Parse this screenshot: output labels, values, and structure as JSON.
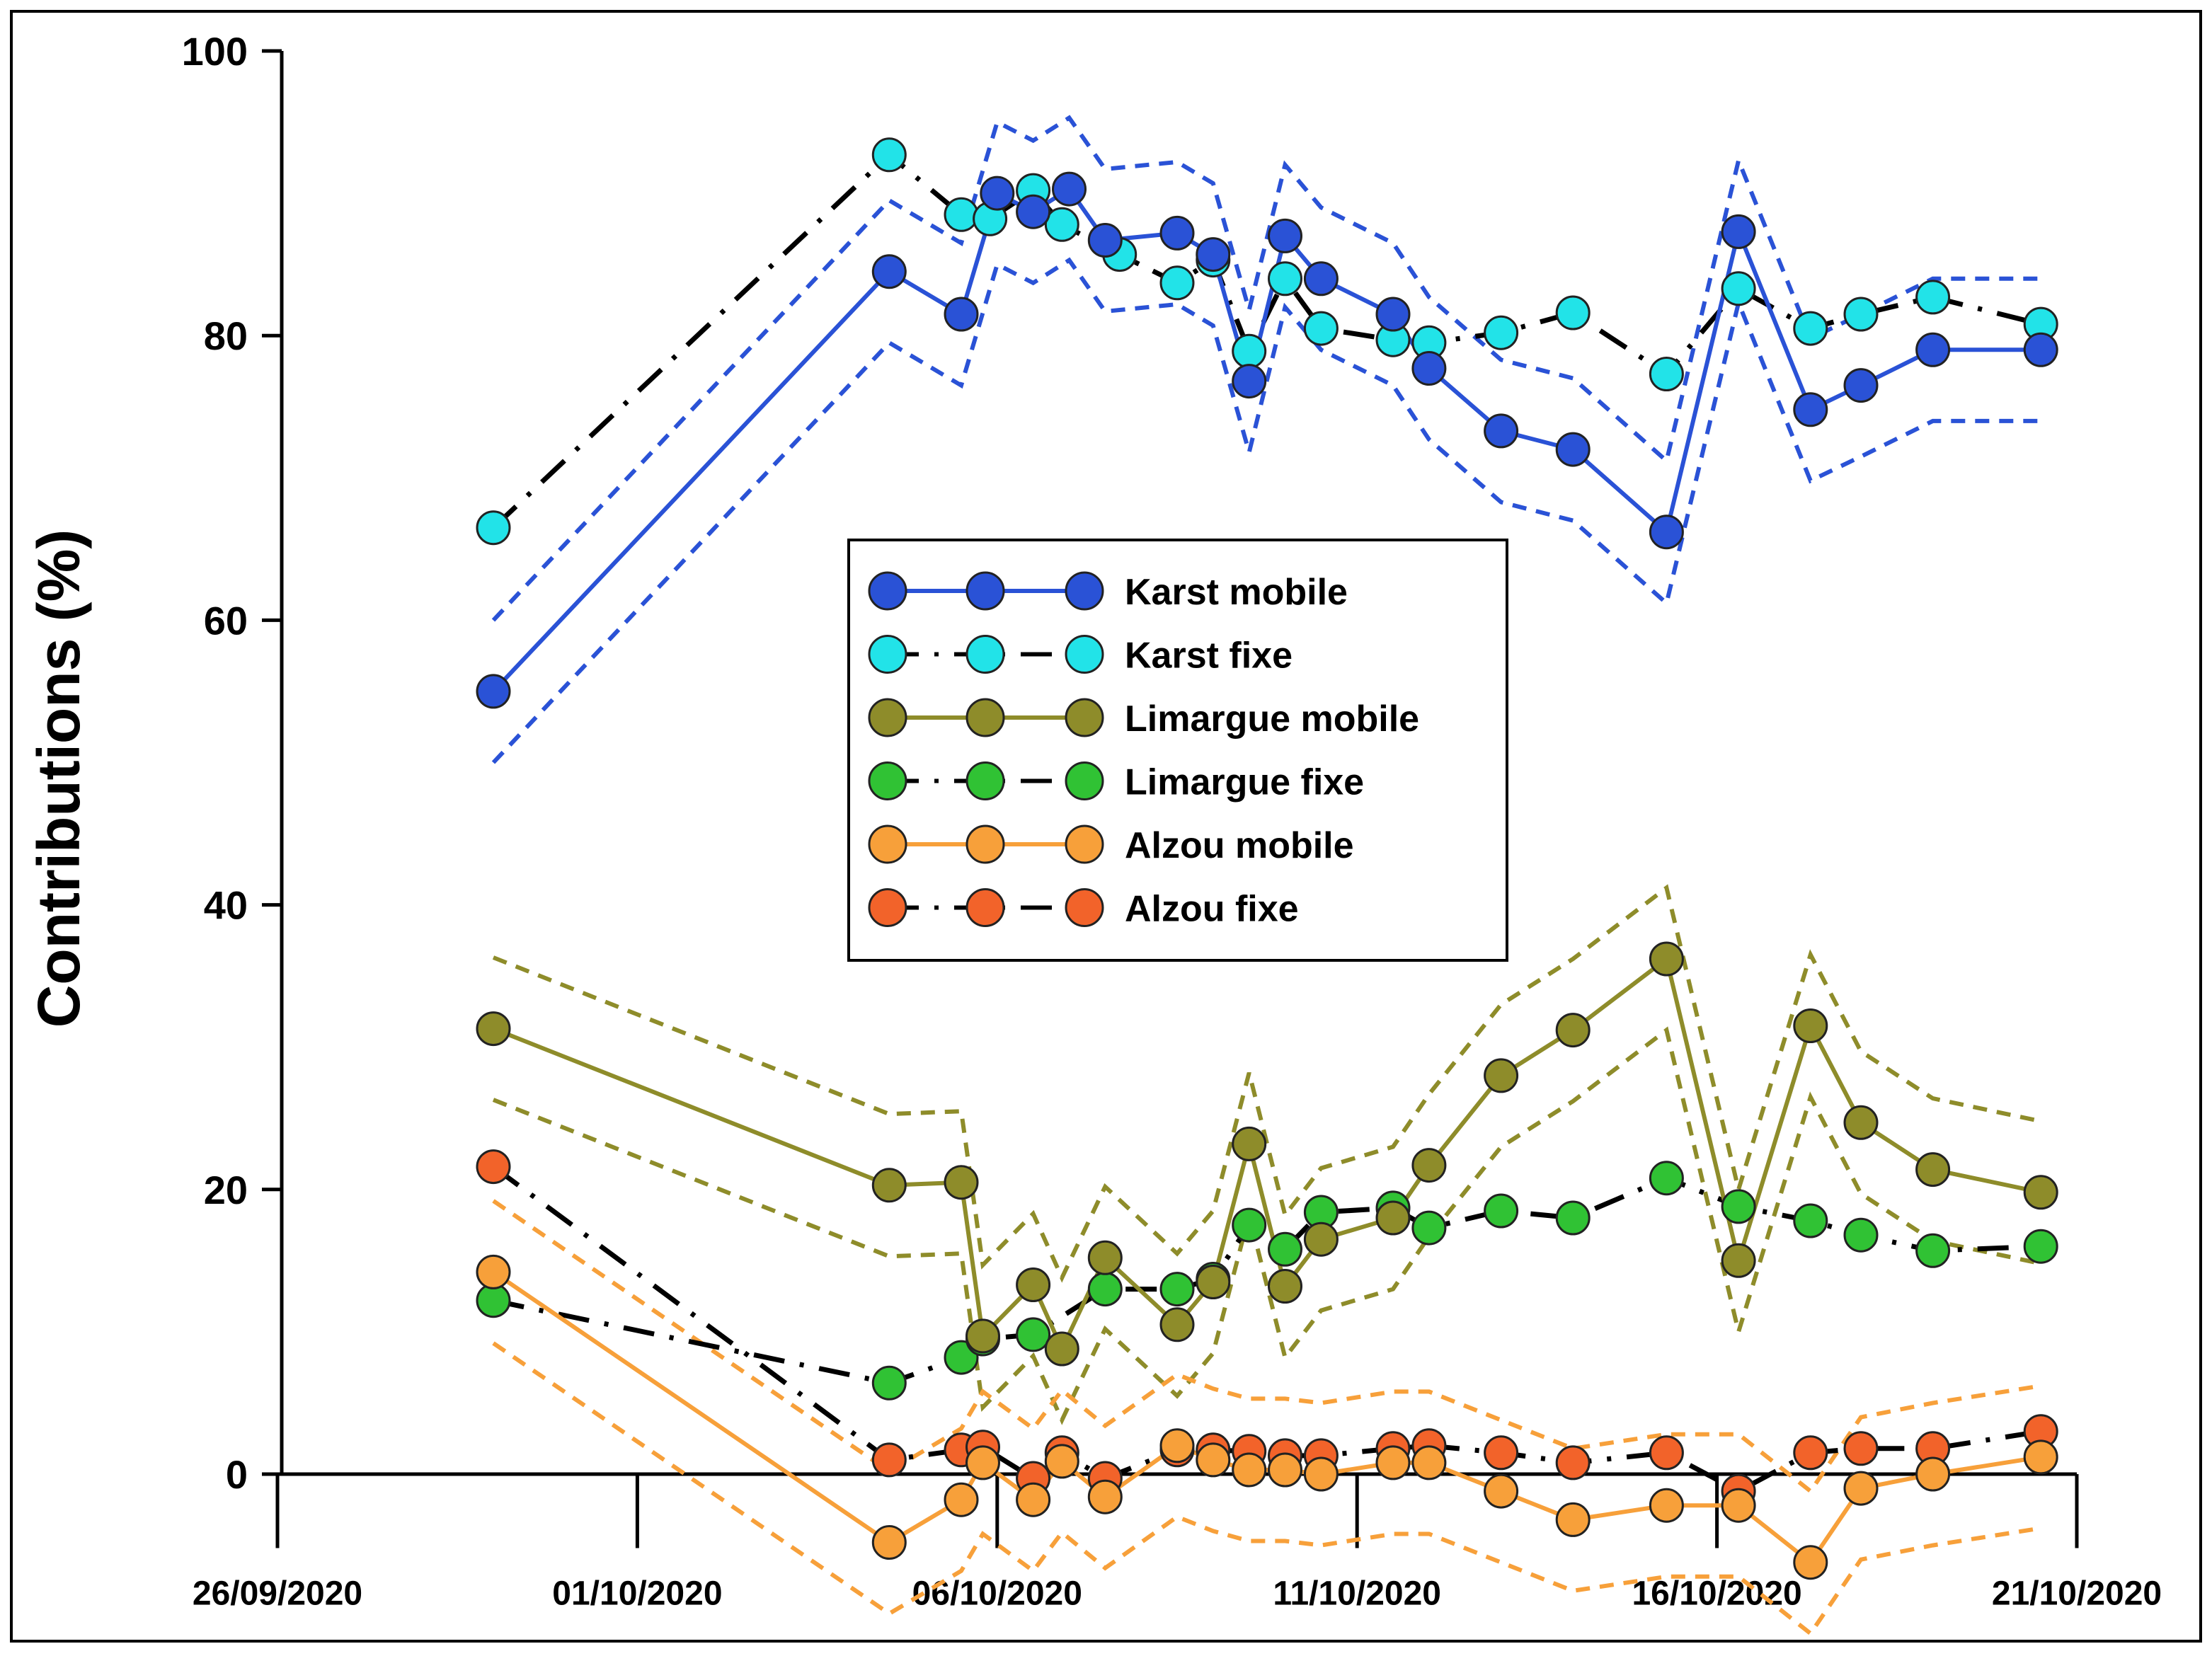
{
  "chart_data": {
    "type": "line",
    "title": "",
    "xlabel": "",
    "ylabel": "Contributions (%)",
    "ylim": [
      0,
      100
    ],
    "yticks": [
      0,
      20,
      40,
      60,
      80,
      100
    ],
    "x_range_days": [
      0,
      25
    ],
    "x_ticks": [
      {
        "day": 0,
        "label": "26/09/2020"
      },
      {
        "day": 5,
        "label": "01/10/2020"
      },
      {
        "day": 10,
        "label": "06/10/2020"
      },
      {
        "day": 15,
        "label": "11/10/2020"
      },
      {
        "day": 20,
        "label": "16/10/2020"
      },
      {
        "day": 25,
        "label": "21/10/2020"
      }
    ],
    "x_axis_y_value": -5,
    "legend_position": "center",
    "series": [
      {
        "name": "Karst mobile",
        "color": "#2a52d6",
        "style": "solid",
        "band_color": "#2a52d6",
        "points": [
          [
            3,
            55
          ],
          [
            8.5,
            84.5
          ],
          [
            9.5,
            81.5
          ],
          [
            10,
            90
          ],
          [
            10.5,
            88.7
          ],
          [
            11,
            90.3
          ],
          [
            11.5,
            86.7
          ],
          [
            12.5,
            87.2
          ],
          [
            13,
            85.7
          ],
          [
            13.5,
            76.8
          ],
          [
            14,
            87
          ],
          [
            14.5,
            84
          ],
          [
            15.5,
            81.5
          ],
          [
            16,
            77.7
          ],
          [
            17,
            73.3
          ],
          [
            18,
            72
          ],
          [
            19.3,
            66.2
          ],
          [
            20.3,
            87.3
          ],
          [
            21.3,
            74.8
          ],
          [
            22,
            76.5
          ],
          [
            23,
            79
          ],
          [
            24.5,
            79
          ]
        ],
        "band_upper": [
          [
            3,
            60
          ],
          [
            8.5,
            89.5
          ],
          [
            9.5,
            86.5
          ],
          [
            10,
            95
          ],
          [
            10.5,
            93.7
          ],
          [
            11,
            95.3
          ],
          [
            11.5,
            91.7
          ],
          [
            12.5,
            92.2
          ],
          [
            13,
            90.7
          ],
          [
            13.5,
            81.8
          ],
          [
            14,
            92
          ],
          [
            14.5,
            89
          ],
          [
            15.5,
            86.5
          ],
          [
            16,
            82.7
          ],
          [
            17,
            78.3
          ],
          [
            18,
            77
          ],
          [
            19.3,
            71.2
          ],
          [
            20.3,
            92.3
          ],
          [
            21.3,
            79.8
          ],
          [
            22,
            81.5
          ],
          [
            23,
            84
          ],
          [
            24.5,
            84
          ]
        ],
        "band_lower": [
          [
            3,
            50
          ],
          [
            8.5,
            79.5
          ],
          [
            9.5,
            76.5
          ],
          [
            10,
            85
          ],
          [
            10.5,
            83.7
          ],
          [
            11,
            85.3
          ],
          [
            11.5,
            81.7
          ],
          [
            12.5,
            82.2
          ],
          [
            13,
            80.7
          ],
          [
            13.5,
            71.8
          ],
          [
            14,
            82
          ],
          [
            14.5,
            79
          ],
          [
            15.5,
            76.5
          ],
          [
            16,
            72.7
          ],
          [
            17,
            68.3
          ],
          [
            18,
            67
          ],
          [
            19.3,
            61.2
          ],
          [
            20.3,
            82.3
          ],
          [
            21.3,
            69.8
          ],
          [
            22,
            71.5
          ],
          [
            23,
            74
          ],
          [
            24.5,
            74
          ]
        ]
      },
      {
        "name": "Karst fixe",
        "color": "#22e3e8",
        "style": "dashdot",
        "points": [
          [
            3,
            66.5
          ],
          [
            8.5,
            92.7
          ],
          [
            9.5,
            88.5
          ],
          [
            9.9,
            88.2
          ],
          [
            10.5,
            90.2
          ],
          [
            10.9,
            87.8
          ],
          [
            11.7,
            85.7
          ],
          [
            12.5,
            83.7
          ],
          [
            13,
            85.3
          ],
          [
            13.5,
            78.9
          ],
          [
            14,
            84
          ],
          [
            14.5,
            80.5
          ],
          [
            15.5,
            79.7
          ],
          [
            16,
            79.5
          ],
          [
            17,
            80.2
          ],
          [
            18,
            81.6
          ],
          [
            19.3,
            77.3
          ],
          [
            20.3,
            83.3
          ],
          [
            21.3,
            80.5
          ],
          [
            22,
            81.5
          ],
          [
            23,
            82.7
          ],
          [
            24.5,
            80.8
          ]
        ]
      },
      {
        "name": "Limargue mobile",
        "color": "#8e8c2a",
        "style": "solid",
        "band_color": "#8e8c2a",
        "points": [
          [
            3,
            31.3
          ],
          [
            8.5,
            20.3
          ],
          [
            9.5,
            20.5
          ],
          [
            9.8,
            9.7
          ],
          [
            10.5,
            13.3
          ],
          [
            10.9,
            8.8
          ],
          [
            11.5,
            15.2
          ],
          [
            12.5,
            10.5
          ],
          [
            13,
            13.5
          ],
          [
            13.5,
            23.2
          ],
          [
            14,
            13.2
          ],
          [
            14.5,
            16.5
          ],
          [
            15.5,
            18
          ],
          [
            16,
            21.7
          ],
          [
            17,
            28
          ],
          [
            18,
            31.2
          ],
          [
            19.3,
            36.2
          ],
          [
            20.3,
            15
          ],
          [
            21.3,
            31.5
          ],
          [
            22,
            24.7
          ],
          [
            23,
            21.4
          ],
          [
            24.5,
            19.8
          ]
        ],
        "band_upper": [
          [
            3,
            36.3
          ],
          [
            8.5,
            25.3
          ],
          [
            9.5,
            25.5
          ],
          [
            9.8,
            14.7
          ],
          [
            10.5,
            18.3
          ],
          [
            10.9,
            13.8
          ],
          [
            11.5,
            20.2
          ],
          [
            12.5,
            15.5
          ],
          [
            13,
            18.5
          ],
          [
            13.5,
            28.2
          ],
          [
            14,
            18.2
          ],
          [
            14.5,
            21.5
          ],
          [
            15.5,
            23
          ],
          [
            16,
            26.7
          ],
          [
            17,
            33
          ],
          [
            18,
            36.2
          ],
          [
            19.3,
            41.2
          ],
          [
            20.3,
            20
          ],
          [
            21.3,
            36.5
          ],
          [
            22,
            29.7
          ],
          [
            23,
            26.4
          ],
          [
            24.5,
            24.8
          ]
        ],
        "band_lower": [
          [
            3,
            26.3
          ],
          [
            8.5,
            15.3
          ],
          [
            9.5,
            15.5
          ],
          [
            9.8,
            4.7
          ],
          [
            10.5,
            8.3
          ],
          [
            10.9,
            3.8
          ],
          [
            11.5,
            10.2
          ],
          [
            12.5,
            5.5
          ],
          [
            13,
            8.5
          ],
          [
            13.5,
            18.2
          ],
          [
            14,
            8.2
          ],
          [
            14.5,
            11.5
          ],
          [
            15.5,
            13
          ],
          [
            16,
            16.7
          ],
          [
            17,
            23
          ],
          [
            18,
            26.2
          ],
          [
            19.3,
            31.2
          ],
          [
            20.3,
            10
          ],
          [
            21.3,
            26.5
          ],
          [
            22,
            19.7
          ],
          [
            23,
            16.4
          ],
          [
            24.5,
            14.8
          ]
        ]
      },
      {
        "name": "Limargue fixe",
        "color": "#30c234",
        "style": "dashdot",
        "points": [
          [
            3,
            12.2
          ],
          [
            8.5,
            6.4
          ],
          [
            9.5,
            8.2
          ],
          [
            9.8,
            9.5
          ],
          [
            10.5,
            9.8
          ],
          [
            11.5,
            13
          ],
          [
            12.5,
            13
          ],
          [
            13,
            13.7
          ],
          [
            13.5,
            17.5
          ],
          [
            14,
            15.8
          ],
          [
            14.5,
            18.4
          ],
          [
            15.5,
            18.7
          ],
          [
            16,
            17.3
          ],
          [
            17,
            18.5
          ],
          [
            18,
            18
          ],
          [
            19.3,
            20.8
          ],
          [
            20.3,
            18.8
          ],
          [
            21.3,
            17.8
          ],
          [
            22,
            16.8
          ],
          [
            23,
            15.7
          ],
          [
            24.5,
            16
          ]
        ]
      },
      {
        "name": "Alzou mobile",
        "color": "#f7a03a",
        "style": "solid",
        "band_color": "#f7a03a",
        "points": [
          [
            3,
            14.2
          ],
          [
            8.5,
            -4.8
          ],
          [
            9.5,
            -1.8
          ],
          [
            9.8,
            0.8
          ],
          [
            10.5,
            -1.8
          ],
          [
            10.9,
            0.9
          ],
          [
            11.5,
            -1.6
          ],
          [
            12.5,
            2
          ],
          [
            13,
            1
          ],
          [
            13.5,
            0.3
          ],
          [
            14,
            0.3
          ],
          [
            14.5,
            0
          ],
          [
            15.5,
            0.8
          ],
          [
            16,
            0.8
          ],
          [
            17,
            -1.2
          ],
          [
            18,
            -3.2
          ],
          [
            19.3,
            -2.2
          ],
          [
            20.3,
            -2.2
          ],
          [
            21.3,
            -6.2
          ],
          [
            22,
            -1
          ],
          [
            23,
            0
          ],
          [
            24.5,
            1.2
          ]
        ],
        "band_upper": [
          [
            3,
            19.2
          ],
          [
            8.5,
            0.2
          ],
          [
            9.5,
            3.2
          ],
          [
            9.8,
            5.8
          ],
          [
            10.5,
            3.2
          ],
          [
            10.9,
            5.9
          ],
          [
            11.5,
            3.4
          ],
          [
            12.5,
            7
          ],
          [
            13,
            6
          ],
          [
            13.5,
            5.3
          ],
          [
            14,
            5.3
          ],
          [
            14.5,
            5
          ],
          [
            15.5,
            5.8
          ],
          [
            16,
            5.8
          ],
          [
            17,
            3.8
          ],
          [
            18,
            1.8
          ],
          [
            19.3,
            2.8
          ],
          [
            20.3,
            2.8
          ],
          [
            21.3,
            -1.2
          ],
          [
            22,
            4
          ],
          [
            23,
            5
          ],
          [
            24.5,
            6.2
          ]
        ],
        "band_lower": [
          [
            3,
            9.2
          ],
          [
            8.5,
            -9.8
          ],
          [
            9.5,
            -6.8
          ],
          [
            9.8,
            -4.2
          ],
          [
            10.5,
            -6.8
          ],
          [
            10.9,
            -4.1
          ],
          [
            11.5,
            -6.6
          ],
          [
            12.5,
            -3
          ],
          [
            13,
            -4
          ],
          [
            13.5,
            -4.7
          ],
          [
            14,
            -4.7
          ],
          [
            14.5,
            -5
          ],
          [
            15.5,
            -4.2
          ],
          [
            16,
            -4.2
          ],
          [
            17,
            -6.2
          ],
          [
            18,
            -8.2
          ],
          [
            19.3,
            -7.2
          ],
          [
            20.3,
            -7.2
          ],
          [
            21.3,
            -11.2
          ],
          [
            22,
            -6
          ],
          [
            23,
            -5
          ],
          [
            24.5,
            -3.8
          ]
        ]
      },
      {
        "name": "Alzou fixe",
        "color": "#f2632a",
        "style": "dashdot",
        "points": [
          [
            3,
            21.6
          ],
          [
            8.5,
            1
          ],
          [
            9.5,
            1.7
          ],
          [
            9.8,
            1.9
          ],
          [
            10.5,
            -0.3
          ],
          [
            10.9,
            1.5
          ],
          [
            11.5,
            -0.3
          ],
          [
            12.5,
            1.7
          ],
          [
            13,
            1.7
          ],
          [
            13.5,
            1.6
          ],
          [
            14,
            1.3
          ],
          [
            14.5,
            1.3
          ],
          [
            15.5,
            1.8
          ],
          [
            16,
            2
          ],
          [
            17,
            1.5
          ],
          [
            18,
            0.8
          ],
          [
            19.3,
            1.5
          ],
          [
            20.3,
            -1.2
          ],
          [
            21.3,
            1.5
          ],
          [
            22,
            1.8
          ],
          [
            23,
            1.8
          ],
          [
            24.5,
            3
          ]
        ]
      }
    ]
  }
}
